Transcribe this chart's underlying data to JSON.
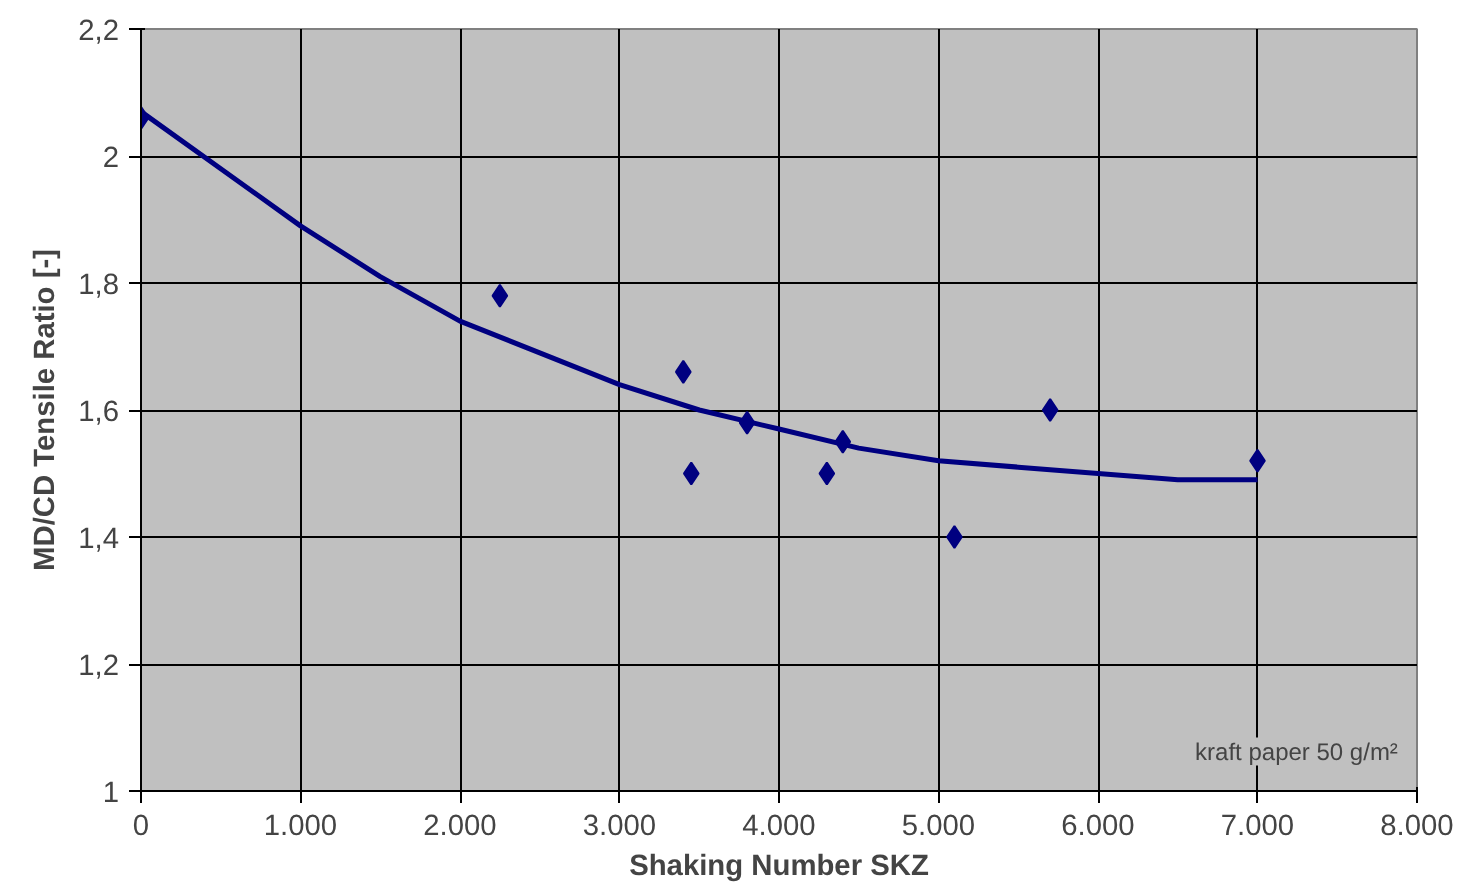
{
  "chart_data": {
    "type": "scatter",
    "xlabel": "Shaking Number SKZ",
    "ylabel": "MD/CD Tensile Ratio [-]",
    "xlim": [
      0,
      8000
    ],
    "ylim": [
      1,
      2.2
    ],
    "xticks": [
      0,
      {
        "value": 1000,
        "label": "1.000"
      },
      {
        "value": 2000,
        "label": "2.000"
      },
      {
        "value": 3000,
        "label": "3.000"
      },
      {
        "value": 4000,
        "label": "4.000"
      },
      {
        "value": 5000,
        "label": "5.000"
      },
      {
        "value": 6000,
        "label": "6.000"
      },
      {
        "value": 7000,
        "label": "7.000"
      },
      {
        "value": 8000,
        "label": "8.000"
      }
    ],
    "yticks": [
      1,
      {
        "value": 1.2,
        "label": "1,2"
      },
      {
        "value": 1.4,
        "label": "1,4"
      },
      {
        "value": 1.6,
        "label": "1,6"
      },
      {
        "value": 1.8,
        "label": "1,8"
      },
      2,
      {
        "value": 2.2,
        "label": "2,2"
      }
    ],
    "grid": true,
    "marker": "diamond",
    "series": [
      {
        "color": "#000080",
        "x": [
          0,
          2250,
          3400,
          3450,
          3800,
          4300,
          4400,
          5100,
          5700,
          7000
        ],
        "values": [
          2.06,
          1.78,
          1.66,
          1.5,
          1.58,
          1.5,
          1.55,
          1.4,
          1.6,
          1.52
        ]
      },
      {
        "type": "line",
        "color": "#000080",
        "marker": "none",
        "x": [
          0,
          500,
          1000,
          1500,
          2000,
          2500,
          3000,
          3500,
          4000,
          4500,
          5000,
          5500,
          6000,
          6500,
          7000
        ],
        "values": [
          2.07,
          1.98,
          1.89,
          1.81,
          1.74,
          1.69,
          1.64,
          1.6,
          1.57,
          1.54,
          1.52,
          1.51,
          1.5,
          1.49,
          1.49
        ]
      }
    ],
    "annotations": [
      "kraft paper 50 g/m²"
    ]
  }
}
